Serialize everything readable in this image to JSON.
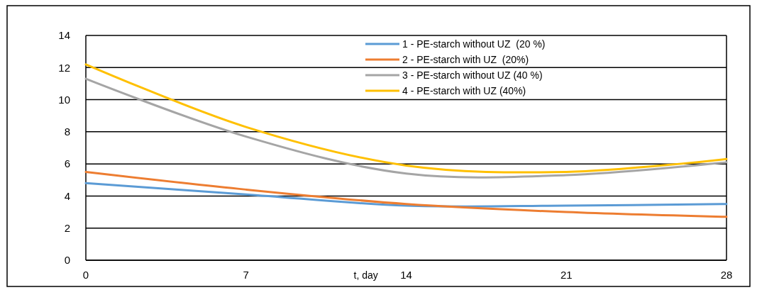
{
  "chart_data": {
    "type": "line",
    "xlabel": "t, day",
    "x": [
      0,
      7,
      14,
      21,
      28
    ],
    "xlim": [
      0,
      28
    ],
    "xticks": [
      0,
      7,
      14,
      21,
      28
    ],
    "ylim": [
      0,
      14
    ],
    "yticks": [
      0,
      2,
      4,
      6,
      8,
      10,
      12,
      14
    ],
    "grid": "y",
    "legend": "top right",
    "marker": "none",
    "line_style": "solid",
    "series": [
      {
        "name": "1 - PE-starch without UZ  (20 %)",
        "color": "#5b9bd5",
        "values": [
          4.8,
          4.1,
          3.4,
          3.4,
          3.5
        ]
      },
      {
        "name": "2 - PE-starch with UZ  (20%)",
        "color": "#ed7d31",
        "values": [
          5.5,
          4.4,
          3.5,
          3.0,
          2.7
        ]
      },
      {
        "name": "3 - PE-starch without UZ (40 %)",
        "color": "#a5a5a5",
        "values": [
          11.3,
          7.7,
          5.4,
          5.3,
          6.1
        ]
      },
      {
        "name": "4 - PE-starch with UZ (40%)",
        "color": "#ffc000",
        "values": [
          12.2,
          8.3,
          5.9,
          5.5,
          6.3
        ]
      }
    ]
  }
}
